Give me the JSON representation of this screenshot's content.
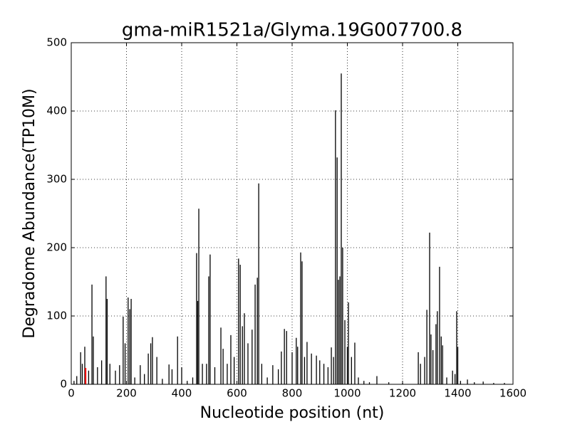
{
  "chart_data": {
    "type": "stem",
    "title": "gma-miR1521a/Glyma.19G007700.8",
    "x_label": "Nucleotide position (nt)",
    "y_label": "Degradome Abundance(TP10M)",
    "xlim": [
      0,
      1600
    ],
    "xticks": [
      0,
      200,
      400,
      600,
      800,
      1000,
      1200,
      1400,
      1600
    ],
    "ylim": [
      0,
      500
    ],
    "yticks": [
      0,
      100,
      200,
      300,
      400,
      500
    ],
    "grid": true,
    "series": [
      {
        "color": "#000000",
        "x": [
          10,
          20,
          34,
          40,
          49,
          63,
          75,
          80,
          95,
          110,
          126,
          130,
          140,
          160,
          175,
          188,
          195,
          206,
          212,
          217,
          230,
          250,
          265,
          279,
          288,
          294,
          310,
          330,
          354,
          365,
          385,
          400,
          420,
          440,
          454,
          458,
          462,
          475,
          490,
          498,
          503,
          520,
          542,
          550,
          565,
          578,
          590,
          606,
          612,
          620,
          627,
          640,
          655,
          666,
          674,
          679,
          690,
          710,
          730,
          750,
          761,
          772,
          780,
          800,
          815,
          820,
          831,
          836,
          845,
          854,
          870,
          888,
          900,
          915,
          930,
          942,
          950,
          957,
          963,
          968,
          973,
          978,
          983,
          991,
          1000,
          1004,
          1015,
          1027,
          1040,
          1060,
          1080,
          1107,
          1150,
          1200,
          1257,
          1265,
          1280,
          1288,
          1298,
          1303,
          1310,
          1321,
          1326,
          1334,
          1340,
          1345,
          1360,
          1381,
          1390,
          1396,
          1400,
          1410,
          1435,
          1460,
          1492,
          1530,
          1569
        ],
        "values": [
          5,
          12,
          47,
          30,
          55,
          20,
          146,
          70,
          25,
          35,
          158,
          125,
          30,
          20,
          28,
          99,
          60,
          127,
          110,
          125,
          10,
          28,
          15,
          45,
          60,
          69,
          40,
          8,
          29,
          22,
          70,
          25,
          5,
          10,
          192,
          122,
          257,
          30,
          30,
          158,
          190,
          25,
          83,
          52,
          30,
          72,
          40,
          184,
          175,
          85,
          104,
          60,
          80,
          146,
          156,
          294,
          30,
          10,
          28,
          22,
          48,
          81,
          78,
          47,
          68,
          55,
          193,
          180,
          40,
          62,
          45,
          42,
          35,
          30,
          25,
          54,
          40,
          401,
          332,
          153,
          158,
          455,
          200,
          94,
          55,
          120,
          40,
          61,
          10,
          5,
          3,
          12,
          3,
          2,
          47,
          30,
          40,
          109,
          222,
          73,
          50,
          88,
          107,
          172,
          70,
          57,
          10,
          20,
          15,
          107,
          55,
          5,
          7,
          3,
          4,
          2,
          2
        ]
      },
      {
        "color": "#ff0000",
        "x": [
          52
        ],
        "values": [
          24
        ]
      }
    ]
  }
}
